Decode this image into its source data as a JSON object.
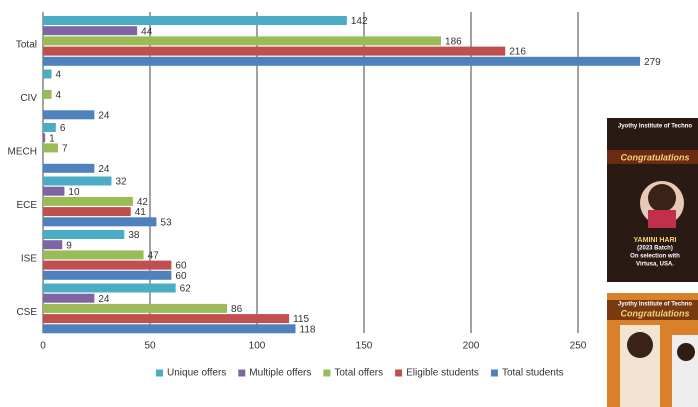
{
  "chart_data": {
    "type": "bar",
    "orientation": "horizontal",
    "categories": [
      "Total",
      "CIV",
      "MECH",
      "ECE",
      "ISE",
      "CSE"
    ],
    "series": [
      {
        "name": "Unique offers",
        "color": "#4bacc6",
        "values": [
          142,
          4,
          6,
          32,
          38,
          62
        ]
      },
      {
        "name": "Multiple offers",
        "color": "#8064a2",
        "values": [
          44,
          null,
          1,
          10,
          9,
          24
        ]
      },
      {
        "name": "Total offers",
        "color": "#9bbb59",
        "values": [
          186,
          4,
          7,
          42,
          47,
          86
        ]
      },
      {
        "name": "Eligible students",
        "color": "#c0504d",
        "values": [
          216,
          null,
          null,
          41,
          60,
          115
        ]
      },
      {
        "name": "Total students",
        "color": "#4f81bd",
        "values": [
          279,
          24,
          24,
          53,
          60,
          118
        ]
      }
    ],
    "xlim": [
      0,
      300
    ],
    "xticks": [
      0,
      50,
      100,
      150,
      200,
      250
    ],
    "grid": true,
    "legend": "bottom"
  },
  "posters": [
    {
      "lines": [
        "Jyothy Institute of Techno",
        "Congratulations",
        "YAMINI HARI",
        "(2023 Batch)",
        "On selection with",
        "Virtusa, USA."
      ]
    },
    {
      "lines": [
        "Jyothy Institute of Techno",
        "Congratulations"
      ]
    }
  ]
}
